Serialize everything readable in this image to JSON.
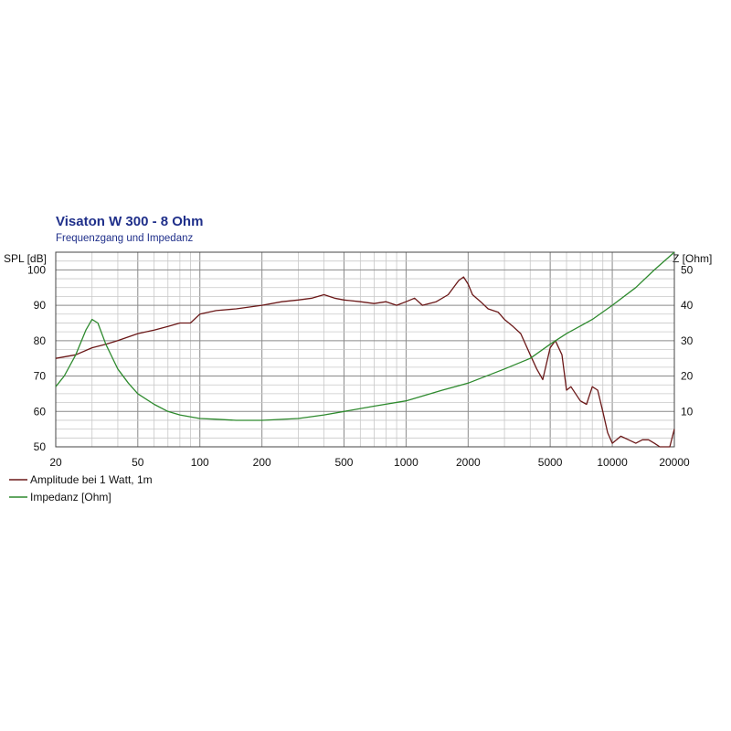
{
  "chart_data": {
    "type": "line",
    "title": "Visaton W 300 - 8 Ohm",
    "subtitle": "Frequenzgang und Impedanz",
    "x_scale": "log",
    "xlim": [
      20,
      20000
    ],
    "x_ticks": [
      "20",
      "50",
      "100",
      "200",
      "500",
      "1000",
      "2000",
      "5000",
      "10000",
      "20000"
    ],
    "y_left": {
      "label": "SPL [dB]",
      "lim": [
        50,
        105
      ],
      "ticks": [
        "50",
        "60",
        "70",
        "80",
        "90",
        "100"
      ]
    },
    "y_right": {
      "label": "Z [Ohm]",
      "lim": [
        0,
        55
      ],
      "ticks": [
        "10",
        "20",
        "30",
        "40",
        "50"
      ]
    },
    "grid": true,
    "legend_position": "bottom-left",
    "series": [
      {
        "name": "Amplitude bei 1 Watt, 1m",
        "axis": "left",
        "color": "#6b1818",
        "x": [
          20,
          25,
          30,
          35,
          40,
          50,
          60,
          70,
          80,
          90,
          100,
          120,
          150,
          200,
          250,
          300,
          350,
          400,
          450,
          500,
          600,
          700,
          800,
          900,
          1000,
          1100,
          1200,
          1400,
          1600,
          1800,
          1900,
          2000,
          2100,
          2300,
          2500,
          2800,
          3000,
          3300,
          3600,
          4000,
          4300,
          4600,
          5000,
          5300,
          5700,
          6000,
          6300,
          7000,
          7500,
          8000,
          8500,
          9000,
          9500,
          10000,
          10500,
          11000,
          12000,
          13000,
          14000,
          15000,
          16000,
          17000,
          18000,
          19000,
          20000
        ],
        "values": [
          75,
          76,
          78,
          79,
          80,
          82,
          83,
          84,
          85,
          85,
          87.5,
          88.5,
          89,
          90,
          91,
          91.5,
          92,
          93,
          92,
          91.5,
          91,
          90.5,
          91,
          90,
          91,
          92,
          90,
          91,
          93,
          97,
          98,
          96,
          93,
          91,
          89,
          88,
          86,
          84,
          82,
          76,
          72,
          69,
          78,
          80,
          76,
          66,
          67,
          63,
          62,
          67,
          66,
          60,
          54,
          51,
          52,
          53,
          52,
          51,
          52,
          52,
          51,
          50,
          50,
          50,
          55
        ]
      },
      {
        "name": "Impedanz [Ohm]",
        "axis": "right",
        "color": "#2e8a2e",
        "x": [
          20,
          22,
          25,
          28,
          30,
          32,
          35,
          40,
          45,
          50,
          60,
          70,
          80,
          100,
          120,
          150,
          200,
          300,
          400,
          500,
          700,
          1000,
          1500,
          2000,
          3000,
          4000,
          5000,
          6000,
          8000,
          10000,
          13000,
          16000,
          20000
        ],
        "values": [
          17,
          20,
          26,
          33,
          36,
          35,
          29,
          22,
          18,
          15,
          12,
          10,
          9,
          8,
          7.8,
          7.5,
          7.5,
          8,
          9,
          10,
          11.5,
          13,
          16,
          18,
          22,
          25,
          29,
          32,
          36,
          40,
          45,
          50,
          55
        ]
      }
    ]
  }
}
